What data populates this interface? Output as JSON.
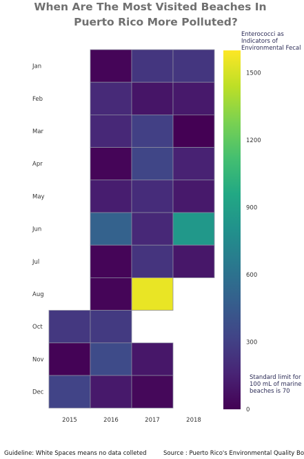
{
  "chart_data": {
    "type": "heatmap",
    "title_lines": [
      "When Are The Most Visited Beaches In",
      "Puerto Rico More Polluted?"
    ],
    "x_categories": [
      "2015",
      "2016",
      "2017",
      "2018"
    ],
    "y_categories": [
      "Jan",
      "Feb",
      "Mar",
      "Apr",
      "May",
      "Jun",
      "Jul",
      "Aug",
      "Oct",
      "Nov",
      "Dec"
    ],
    "values": [
      [
        null,
        20,
        250,
        250
      ],
      [
        null,
        190,
        90,
        110
      ],
      [
        null,
        180,
        300,
        0
      ],
      [
        null,
        20,
        330,
        150
      ],
      [
        null,
        130,
        200,
        110
      ],
      [
        null,
        500,
        180,
        850
      ],
      [
        null,
        20,
        240,
        100
      ],
      [
        null,
        20,
        1550,
        null
      ],
      [
        260,
        270,
        null,
        null
      ],
      [
        10,
        360,
        100,
        null
      ],
      [
        320,
        110,
        30,
        null
      ]
    ],
    "colorscale": "viridis",
    "zlim": [
      0,
      1600
    ],
    "colorbar": {
      "title_lines": [
        "Enterococci as",
        "Indicators of",
        "Environmental Fecal"
      ],
      "ticks": [
        0,
        300,
        600,
        900,
        1200,
        1500
      ],
      "tick_labels": [
        "0",
        "300",
        "600",
        "900",
        "1200",
        "1500"
      ],
      "note_lines": [
        "Standard limit for",
        "100 mL of marine",
        "beaches is 70"
      ]
    }
  },
  "footer": {
    "guideline": "Guideline: White Spaces means no data colleted",
    "source": "Source : Puerto Rico's Environmental Quality Board"
  }
}
